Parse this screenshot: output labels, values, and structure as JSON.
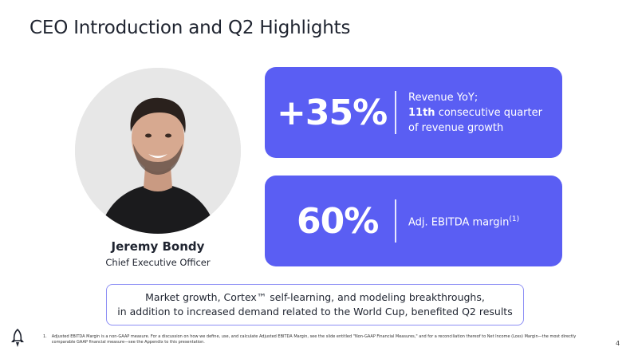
{
  "slide": {
    "title": "CEO Introduction and Q2 Highlights",
    "page_number": "4"
  },
  "person": {
    "name": "Jeremy Bondy",
    "role": "Chief Executive Officer"
  },
  "highlights": [
    {
      "value": "+35%",
      "line1": "Revenue YoY;",
      "line2_bold": "11th",
      "line2_rest": " consecutive quarter",
      "line3": "of revenue growth"
    },
    {
      "value": "60%",
      "label": "Adj. EBITDA margin",
      "footnote_ref": "(1)"
    }
  ],
  "callout": {
    "line1": "Market growth, Cortex™ self-learning, and modeling breakthroughs,",
    "line2": "in addition to increased demand related to the World Cup, benefited Q2 results"
  },
  "footnote": {
    "marker": "1.",
    "text": "Adjusted EBITDA Margin is a non-GAAP measure. For a discussion on how we define, use, and calculate Adjusted EBITDA Margin, see the slide entitled \"Non-GAAP Financial Measures,\" and for a reconciliation thereof to Net Income (Loss) Margin—the most directly comparable GAAP financial measure—see the Appendix to this presentation."
  },
  "colors": {
    "card": "#5a5ef3",
    "callout_border": "#8d8ff5",
    "text": "#1f2430"
  },
  "icons": {
    "logo": "rocket-logo-icon"
  }
}
